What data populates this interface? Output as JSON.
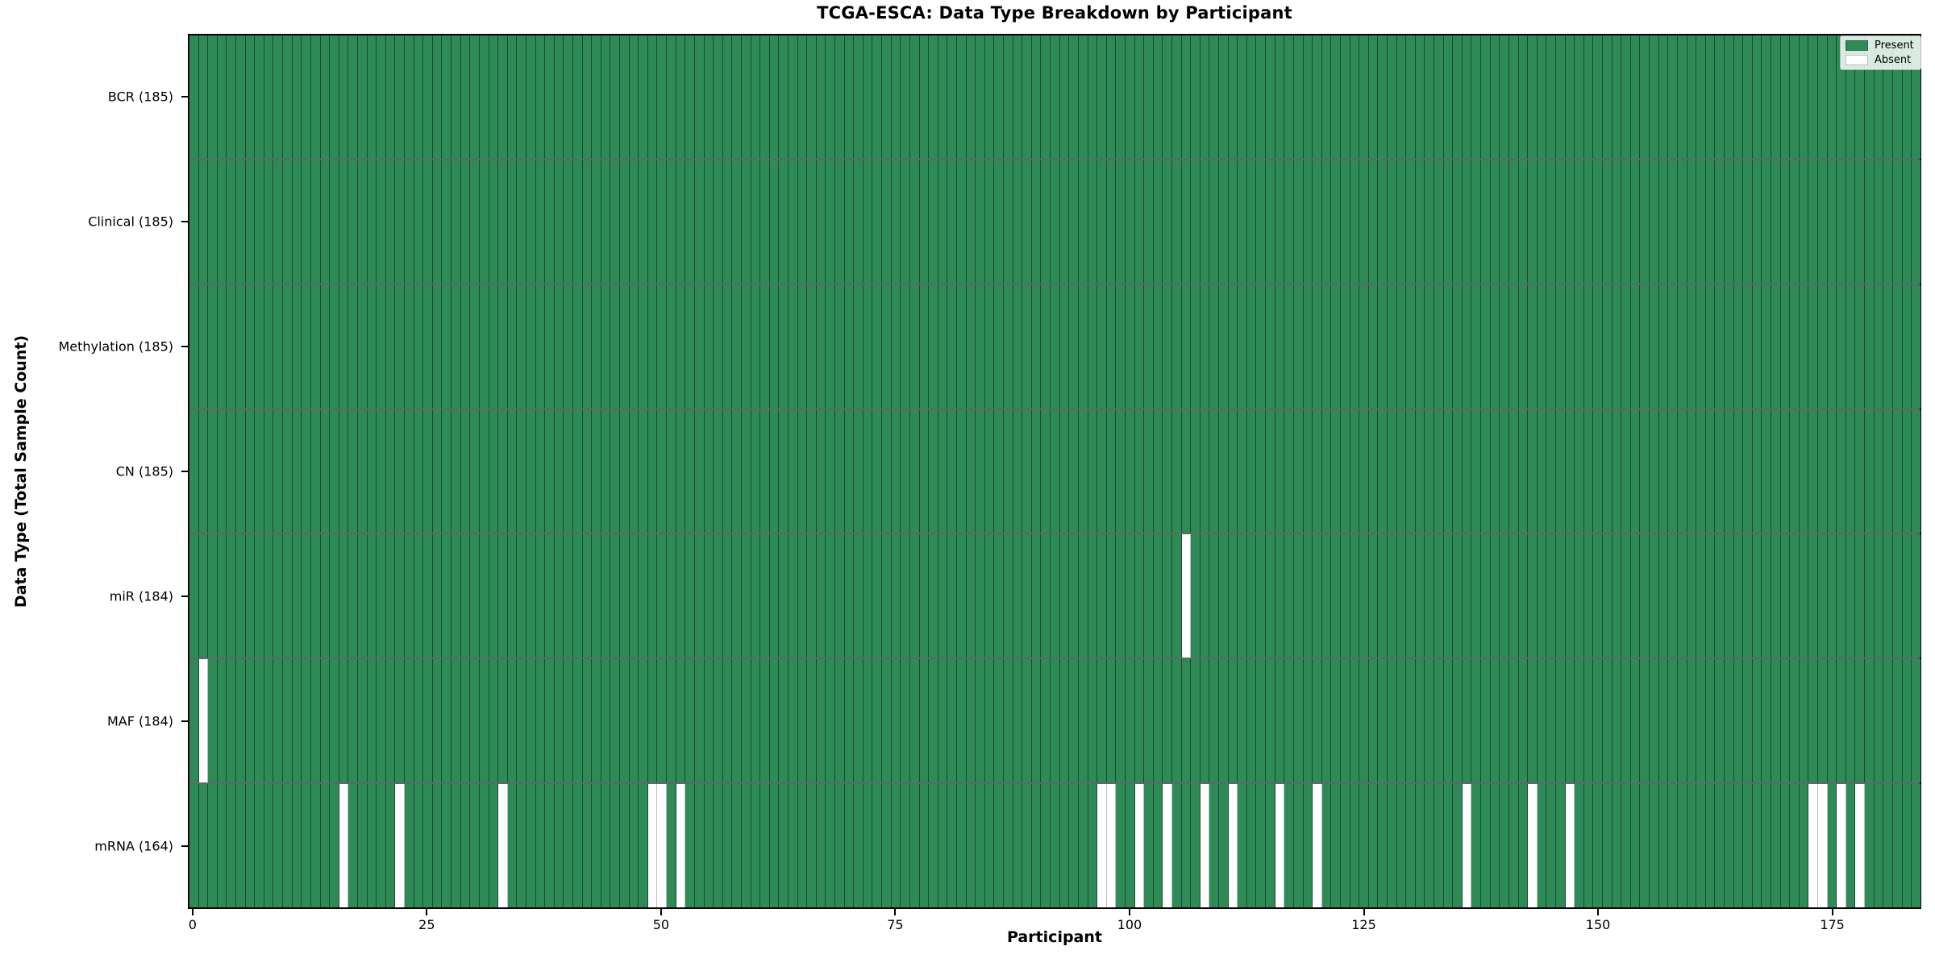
{
  "title": "TCGA-ESCA: Data Type Breakdown by Participant",
  "x_axis_label": "Participant",
  "y_axis_label": "Data Type (Total Sample Count)",
  "colors": {
    "present": "#2e8b57",
    "absent": "#ffffff",
    "cell_edge": "rgba(0,0,0,0.45)",
    "row_divider": "rgba(0,0,0,0.60)",
    "axis": "#000000"
  },
  "legend": {
    "entries": [
      {
        "label": "Present",
        "color": "#2e8b57"
      },
      {
        "label": "Absent",
        "color": "#ffffff"
      }
    ]
  },
  "chart_data": {
    "type": "heatmap",
    "title": "TCGA-ESCA: Data Type Breakdown by Participant",
    "xlabel": "Participant",
    "ylabel": "Data Type (Total Sample Count)",
    "n_participants": 185,
    "xlim": [
      -0.5,
      184.5
    ],
    "x_ticks": [
      0,
      25,
      50,
      75,
      100,
      125,
      150,
      175
    ],
    "grid": false,
    "legend_position": "upper right",
    "cell_states": {
      "present": 1,
      "absent": 0
    },
    "rows": [
      {
        "name": "bcr",
        "label": "BCR (185)",
        "data_type": "BCR",
        "present_count": 185,
        "absent_participants": []
      },
      {
        "name": "clinical",
        "label": "Clinical (185)",
        "data_type": "Clinical",
        "present_count": 185,
        "absent_participants": []
      },
      {
        "name": "methylation",
        "label": "Methylation (185)",
        "data_type": "Methylation",
        "present_count": 185,
        "absent_participants": []
      },
      {
        "name": "cn",
        "label": "CN (185)",
        "data_type": "CN",
        "present_count": 185,
        "absent_participants": []
      },
      {
        "name": "mir",
        "label": "miR (184)",
        "data_type": "miR",
        "present_count": 184,
        "absent_participants": [
          106
        ]
      },
      {
        "name": "maf",
        "label": "MAF (184)",
        "data_type": "MAF",
        "present_count": 184,
        "absent_participants": [
          1
        ]
      },
      {
        "name": "mrna",
        "label": "mRNA (164)",
        "data_type": "mRNA",
        "present_count": 164,
        "absent_participants": [
          16,
          22,
          33,
          49,
          50,
          52,
          97,
          98,
          101,
          104,
          108,
          111,
          116,
          120,
          136,
          143,
          147,
          173,
          174,
          176,
          178
        ]
      }
    ]
  }
}
